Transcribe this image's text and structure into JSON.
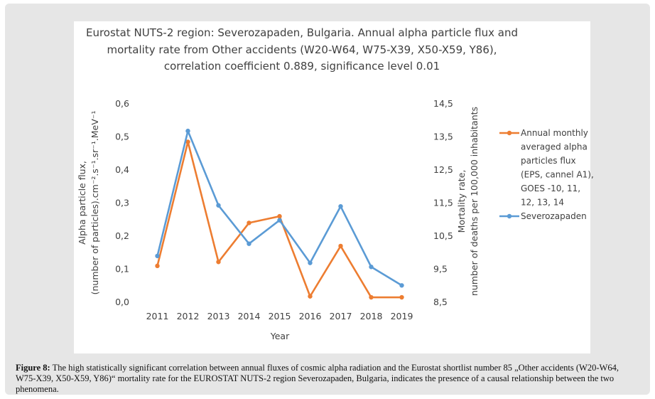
{
  "chart_data": {
    "type": "line",
    "title_lines": [
      "Eurostat NUTS-2 region: Severozapaden,  Bulgaria. Annual alpha particle flux and",
      "mortality rate from Other accidents (W20-W64, W75-X39, X50-X59, Y86),",
      "correlation coefficient 0.889, significance level 0.01"
    ],
    "xlabel": "Year",
    "ylabel_left_lines": [
      "Alpha particle flux,",
      "(number of particles).cm⁻².s⁻¹.sr⁻¹.MeV⁻¹"
    ],
    "ylabel_right_lines": [
      "Mortality rate,",
      "number of deaths per 100,000 inhabitants"
    ],
    "categories": [
      "2011",
      "2012",
      "2013",
      "2014",
      "2015",
      "2016",
      "2017",
      "2018",
      "2019"
    ],
    "y_left": {
      "ylim": [
        0.0,
        0.6
      ],
      "ticks": [
        "0,0",
        "0,1",
        "0,2",
        "0,3",
        "0,4",
        "0,5",
        "0,6"
      ]
    },
    "y_right": {
      "ylim": [
        8.5,
        14.5
      ],
      "ticks": [
        "8,5",
        "9,5",
        "10,5",
        "11,5",
        "12,5",
        "13,5",
        "14,5"
      ]
    },
    "grid": false,
    "legend_position": "right",
    "series": [
      {
        "name": "Annual monthly averaged alpha particles flux (EPS, cannel A1), GOES -10, 11, 12, 13, 14",
        "legend_lines": [
          "Annual monthly",
          "averaged alpha",
          "particles flux",
          "(EPS, cannel A1),",
          "GOES -10, 11,",
          "12, 13, 14"
        ],
        "axis": "left",
        "color": "#ed7d31",
        "values": [
          0.11,
          0.485,
          0.122,
          0.24,
          0.26,
          0.018,
          0.17,
          0.015,
          0.015
        ]
      },
      {
        "name": "Severozapaden",
        "legend_lines": [
          "Severozapaden"
        ],
        "axis": "right",
        "color": "#5b9bd5",
        "values": [
          9.9,
          13.68,
          11.43,
          10.27,
          10.98,
          9.69,
          11.4,
          9.57,
          9.01
        ]
      }
    ]
  },
  "caption": {
    "label": "Figure 8:",
    "text": " The high statistically significant correlation between annual fluxes of cosmic alpha radiation and the Eurostat shortlist number 85 „Other accidents (W20-W64, W75-X39, X50-X59, Y86)“ mortality rate for the EUROSTAT NUTS-2 region Severozapaden, Bulgaria, indicates the presence of a causal relationship between the two phenomena."
  }
}
